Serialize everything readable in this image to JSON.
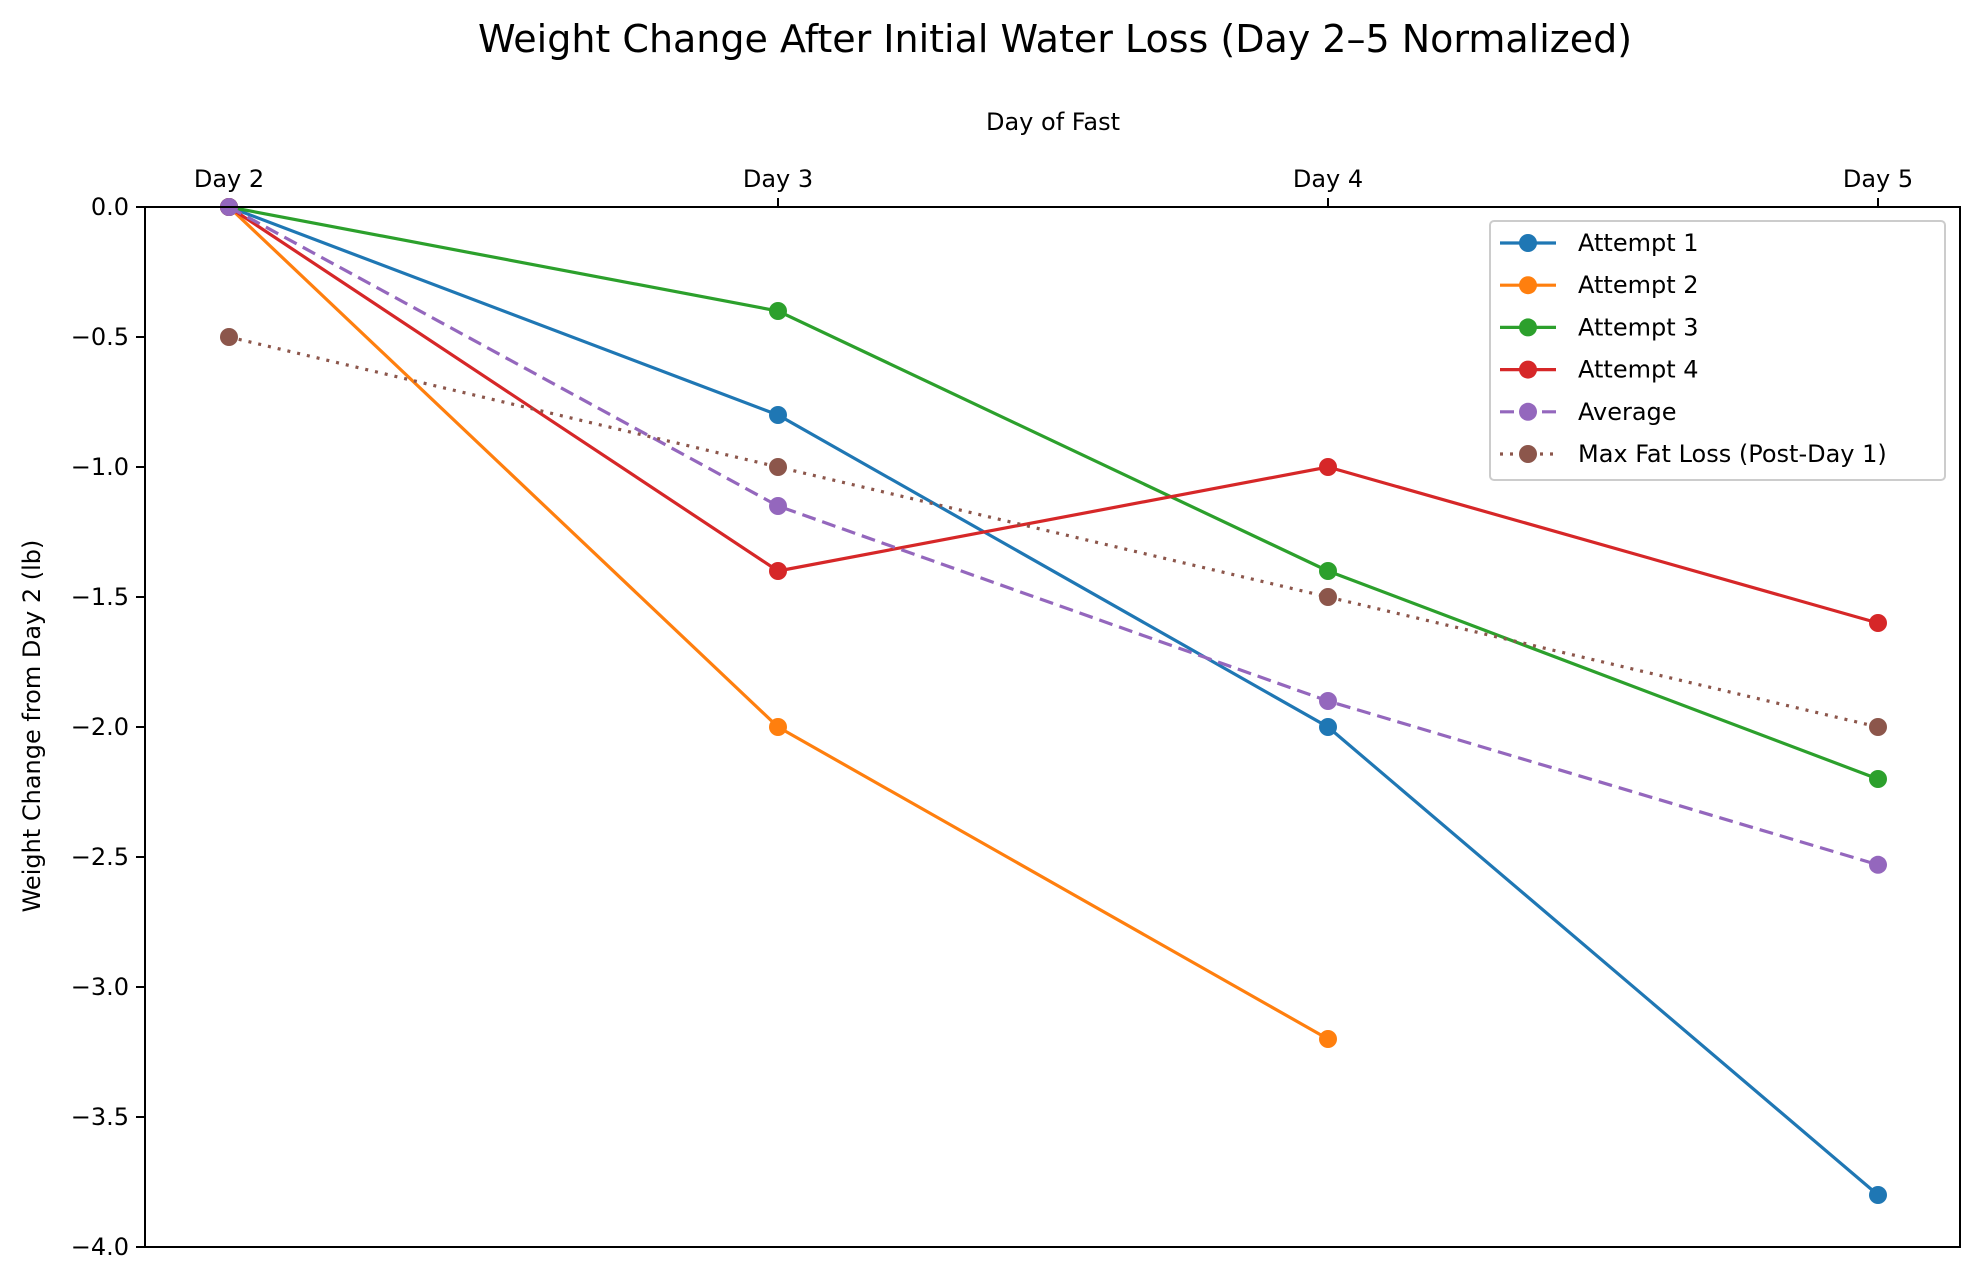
{
  "chart_data": {
    "type": "line",
    "title": "Weight Change After Initial Water Loss (Day 2–5 Normalized)",
    "xlabel": "Day of Fast",
    "xlabel_position": "top",
    "ylabel": "Weight Change from Day 2 (lb)",
    "categories": [
      "Day 2",
      "Day 3",
      "Day 4",
      "Day 5"
    ],
    "ylim": [
      -4.0,
      0.0
    ],
    "yticks": [
      0.0,
      -0.5,
      -1.0,
      -1.5,
      -2.0,
      -2.5,
      -3.0,
      -3.5,
      -4.0
    ],
    "ytick_labels": [
      "0.0",
      "−0.5",
      "−1.0",
      "−1.5",
      "−2.0",
      "−2.5",
      "−3.0",
      "−3.5",
      "−4.0"
    ],
    "grid": false,
    "legend_position": "top-right",
    "series": [
      {
        "name": "Attempt 1",
        "values": [
          0.0,
          -0.8,
          -2.0,
          -3.8
        ],
        "color": "#1f77b4",
        "style": "solid"
      },
      {
        "name": "Attempt 2",
        "values": [
          0.0,
          -2.0,
          -3.2,
          null
        ],
        "color": "#ff7f0e",
        "style": "solid"
      },
      {
        "name": "Attempt 3",
        "values": [
          0.0,
          -0.4,
          -1.4,
          -2.2
        ],
        "color": "#2ca02c",
        "style": "solid"
      },
      {
        "name": "Attempt 4",
        "values": [
          0.0,
          -1.4,
          -1.0,
          -1.6
        ],
        "color": "#d62728",
        "style": "solid"
      },
      {
        "name": "Average",
        "values": [
          0.0,
          -1.15,
          -1.9,
          -2.53
        ],
        "color": "#9467bd",
        "style": "dashed"
      },
      {
        "name": "Max Fat Loss (Post-Day 1)",
        "values": [
          -0.5,
          -1.0,
          -1.5,
          -2.0
        ],
        "color": "#8c564b",
        "style": "dotted"
      }
    ]
  }
}
